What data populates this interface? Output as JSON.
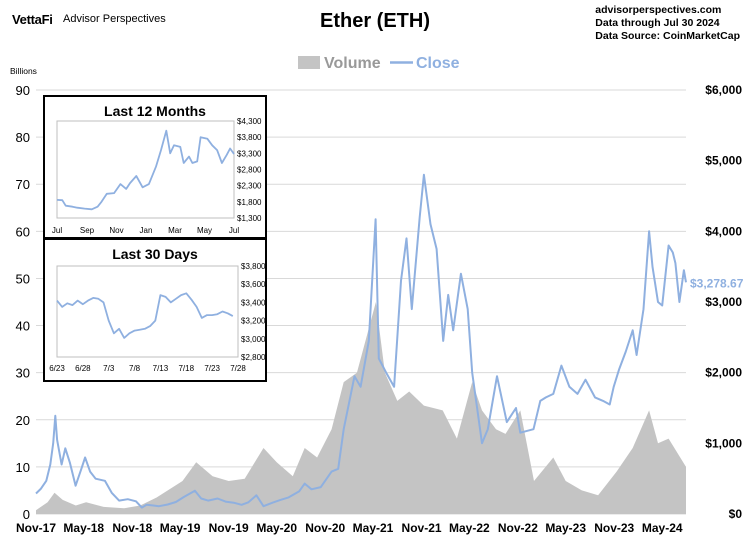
{
  "header": {
    "brand_logo": "VettaFi",
    "brand_name": "Advisor Perspectives",
    "title": "Ether (ETH)",
    "source_lines": [
      "advisorperspectives.com",
      "Data through Jul 30 2024",
      "Data Source: CoinMarketCap"
    ]
  },
  "colors": {
    "close": "#8fb0e0",
    "volume": "#c4c4c4",
    "last_label": "#8fb0e0"
  },
  "chart_data": [
    {
      "type": "area+line",
      "title": "Ether (ETH)",
      "legend": {
        "position": "top-center",
        "entries": [
          "Volume",
          "Close"
        ]
      },
      "left_axis": {
        "label": "Billions",
        "min": 0,
        "max": 90,
        "ticks": [
          0,
          10,
          20,
          30,
          40,
          50,
          60,
          70,
          80,
          90
        ]
      },
      "right_axis": {
        "min": 0,
        "max": 6000,
        "tick_labels": [
          "$0",
          "$1,000",
          "$2,000",
          "$3,000",
          "$4,000",
          "$5,000",
          "$6,000"
        ],
        "tick_values": [
          0,
          1000,
          2000,
          3000,
          4000,
          5000,
          6000
        ]
      },
      "x_tick_labels": [
        "Nov-17",
        "May-18",
        "Nov-18",
        "May-19",
        "Nov-19",
        "May-20",
        "Nov-20",
        "May-21",
        "Nov-21",
        "May-22",
        "Nov-22",
        "May-23",
        "Nov-23",
        "May-24"
      ],
      "x_tick_dates": [
        "2017-11-01",
        "2018-05-01",
        "2018-11-01",
        "2019-05-01",
        "2019-11-01",
        "2020-05-01",
        "2020-11-01",
        "2021-05-01",
        "2021-11-01",
        "2022-05-01",
        "2022-11-01",
        "2023-05-01",
        "2023-11-01",
        "2024-05-01"
      ],
      "x_range": [
        "2017-11-01",
        "2024-07-30"
      ],
      "last_close_label": "$3,278.67",
      "series": [
        {
          "name": "Close",
          "axis": "right",
          "points": [
            [
              "2017-11-01",
              290
            ],
            [
              "2017-11-20",
              360
            ],
            [
              "2017-12-10",
              470
            ],
            [
              "2017-12-25",
              700
            ],
            [
              "2018-01-05",
              1000
            ],
            [
              "2018-01-13",
              1390
            ],
            [
              "2018-01-20",
              1050
            ],
            [
              "2018-02-06",
              700
            ],
            [
              "2018-02-20",
              930
            ],
            [
              "2018-03-10",
              720
            ],
            [
              "2018-03-31",
              400
            ],
            [
              "2018-04-20",
              620
            ],
            [
              "2018-05-06",
              800
            ],
            [
              "2018-05-25",
              600
            ],
            [
              "2018-06-15",
              500
            ],
            [
              "2018-07-20",
              470
            ],
            [
              "2018-08-15",
              300
            ],
            [
              "2018-09-12",
              190
            ],
            [
              "2018-10-15",
              210
            ],
            [
              "2018-11-15",
              180
            ],
            [
              "2018-12-07",
              90
            ],
            [
              "2018-12-25",
              130
            ],
            [
              "2019-01-20",
              120
            ],
            [
              "2019-02-10",
              110
            ],
            [
              "2019-03-15",
              135
            ],
            [
              "2019-04-15",
              170
            ],
            [
              "2019-05-15",
              240
            ],
            [
              "2019-06-26",
              330
            ],
            [
              "2019-07-20",
              220
            ],
            [
              "2019-08-15",
              190
            ],
            [
              "2019-09-20",
              220
            ],
            [
              "2019-10-20",
              175
            ],
            [
              "2019-11-20",
              160
            ],
            [
              "2019-12-20",
              130
            ],
            [
              "2020-01-15",
              165
            ],
            [
              "2020-02-14",
              265
            ],
            [
              "2020-03-12",
              110
            ],
            [
              "2020-04-15",
              160
            ],
            [
              "2020-05-15",
              200
            ],
            [
              "2020-06-15",
              235
            ],
            [
              "2020-07-25",
              320
            ],
            [
              "2020-08-15",
              430
            ],
            [
              "2020-09-10",
              350
            ],
            [
              "2020-10-15",
              380
            ],
            [
              "2020-11-25",
              600
            ],
            [
              "2020-12-20",
              640
            ],
            [
              "2021-01-10",
              1200
            ],
            [
              "2021-02-20",
              1950
            ],
            [
              "2021-03-15",
              1800
            ],
            [
              "2021-04-15",
              2450
            ],
            [
              "2021-05-11",
              4170
            ],
            [
              "2021-05-23",
              2200
            ],
            [
              "2021-06-20",
              2000
            ],
            [
              "2021-07-20",
              1800
            ],
            [
              "2021-08-15",
              3300
            ],
            [
              "2021-09-05",
              3900
            ],
            [
              "2021-09-25",
              2900
            ],
            [
              "2021-10-25",
              4200
            ],
            [
              "2021-11-10",
              4800
            ],
            [
              "2021-12-05",
              4100
            ],
            [
              "2021-12-28",
              3750
            ],
            [
              "2022-01-22",
              2450
            ],
            [
              "2022-02-10",
              3100
            ],
            [
              "2022-03-01",
              2600
            ],
            [
              "2022-03-30",
              3400
            ],
            [
              "2022-04-25",
              2900
            ],
            [
              "2022-05-12",
              2000
            ],
            [
              "2022-06-18",
              1000
            ],
            [
              "2022-07-10",
              1200
            ],
            [
              "2022-08-14",
              1950
            ],
            [
              "2022-09-20",
              1300
            ],
            [
              "2022-10-25",
              1500
            ],
            [
              "2022-11-10",
              1150
            ],
            [
              "2022-12-30",
              1200
            ],
            [
              "2023-01-25",
              1600
            ],
            [
              "2023-02-15",
              1650
            ],
            [
              "2023-03-15",
              1700
            ],
            [
              "2023-04-15",
              2100
            ],
            [
              "2023-05-15",
              1800
            ],
            [
              "2023-06-15",
              1700
            ],
            [
              "2023-07-15",
              1900
            ],
            [
              "2023-08-20",
              1650
            ],
            [
              "2023-09-20",
              1600
            ],
            [
              "2023-10-15",
              1550
            ],
            [
              "2023-10-30",
              1800
            ],
            [
              "2023-11-20",
              2050
            ],
            [
              "2023-12-15",
              2300
            ],
            [
              "2024-01-10",
              2600
            ],
            [
              "2024-01-25",
              2250
            ],
            [
              "2024-02-20",
              2900
            ],
            [
              "2024-03-12",
              4000
            ],
            [
              "2024-03-25",
              3500
            ],
            [
              "2024-04-15",
              3000
            ],
            [
              "2024-05-01",
              2950
            ],
            [
              "2024-05-25",
              3800
            ],
            [
              "2024-06-10",
              3700
            ],
            [
              "2024-06-20",
              3550
            ],
            [
              "2024-07-05",
              3000
            ],
            [
              "2024-07-22",
              3450
            ],
            [
              "2024-07-30",
              3279
            ]
          ]
        },
        {
          "name": "Volume",
          "axis": "left",
          "points": [
            [
              "2017-11-01",
              0.8
            ],
            [
              "2017-12-15",
              2.5
            ],
            [
              "2018-01-10",
              4.5
            ],
            [
              "2018-02-10",
              3
            ],
            [
              "2018-04-01",
              1.8
            ],
            [
              "2018-05-10",
              2.5
            ],
            [
              "2018-07-15",
              1.5
            ],
            [
              "2018-10-01",
              1.2
            ],
            [
              "2018-12-01",
              1.8
            ],
            [
              "2019-02-01",
              3.5
            ],
            [
              "2019-05-10",
              7
            ],
            [
              "2019-07-01",
              11
            ],
            [
              "2019-09-01",
              8
            ],
            [
              "2019-11-01",
              7
            ],
            [
              "2020-01-01",
              7.5
            ],
            [
              "2020-03-12",
              14
            ],
            [
              "2020-05-01",
              11
            ],
            [
              "2020-07-01",
              8
            ],
            [
              "2020-08-15",
              14
            ],
            [
              "2020-10-01",
              12
            ],
            [
              "2020-11-25",
              18
            ],
            [
              "2021-01-10",
              28
            ],
            [
              "2021-03-01",
              30
            ],
            [
              "2021-05-12",
              45
            ],
            [
              "2021-06-15",
              30
            ],
            [
              "2021-08-01",
              24
            ],
            [
              "2021-09-15",
              26
            ],
            [
              "2021-11-10",
              23
            ],
            [
              "2022-01-20",
              22
            ],
            [
              "2022-03-15",
              16
            ],
            [
              "2022-05-12",
              28
            ],
            [
              "2022-06-18",
              22
            ],
            [
              "2022-08-10",
              18
            ],
            [
              "2022-09-15",
              17
            ],
            [
              "2022-11-10",
              22
            ],
            [
              "2023-01-01",
              7
            ],
            [
              "2023-03-15",
              12
            ],
            [
              "2023-05-01",
              7
            ],
            [
              "2023-07-01",
              5
            ],
            [
              "2023-09-01",
              4
            ],
            [
              "2023-11-10",
              9
            ],
            [
              "2024-01-10",
              14
            ],
            [
              "2024-03-12",
              22
            ],
            [
              "2024-04-15",
              15
            ],
            [
              "2024-05-25",
              16
            ],
            [
              "2024-07-30",
              10
            ]
          ]
        }
      ]
    },
    {
      "type": "line",
      "title": "Last 12 Months",
      "x_tick_labels": [
        "Jul",
        "Sep",
        "Nov",
        "Jan",
        "Mar",
        "May",
        "Jul"
      ],
      "x_tick_dates": [
        "2023-07-30",
        "2023-09-30",
        "2023-11-30",
        "2024-01-30",
        "2024-03-30",
        "2024-05-30",
        "2024-07-30"
      ],
      "x_range": [
        "2023-07-30",
        "2024-07-30"
      ],
      "y_tick_labels": [
        "$1,300",
        "$1,800",
        "$2,300",
        "$2,800",
        "$3,300",
        "$3,800",
        "$4,300"
      ],
      "y_tick_values": [
        1300,
        1800,
        2300,
        2800,
        3300,
        3800,
        4300
      ],
      "ylim": [
        1300,
        4300
      ],
      "series": [
        {
          "name": "Close",
          "points": [
            [
              "2023-07-30",
              1860
            ],
            [
              "2023-08-10",
              1850
            ],
            [
              "2023-08-17",
              1680
            ],
            [
              "2023-08-31",
              1650
            ],
            [
              "2023-09-10",
              1620
            ],
            [
              "2023-09-25",
              1590
            ],
            [
              "2023-10-10",
              1570
            ],
            [
              "2023-10-22",
              1650
            ],
            [
              "2023-10-30",
              1800
            ],
            [
              "2023-11-10",
              2050
            ],
            [
              "2023-11-25",
              2070
            ],
            [
              "2023-12-08",
              2350
            ],
            [
              "2023-12-20",
              2200
            ],
            [
              "2023-12-28",
              2380
            ],
            [
              "2024-01-10",
              2600
            ],
            [
              "2024-01-23",
              2250
            ],
            [
              "2024-02-05",
              2350
            ],
            [
              "2024-02-20",
              2900
            ],
            [
              "2024-03-01",
              3400
            ],
            [
              "2024-03-12",
              4000
            ],
            [
              "2024-03-20",
              3300
            ],
            [
              "2024-03-28",
              3550
            ],
            [
              "2024-04-10",
              3500
            ],
            [
              "2024-04-17",
              3000
            ],
            [
              "2024-04-28",
              3200
            ],
            [
              "2024-05-05",
              3000
            ],
            [
              "2024-05-15",
              3050
            ],
            [
              "2024-05-22",
              3800
            ],
            [
              "2024-06-05",
              3750
            ],
            [
              "2024-06-15",
              3550
            ],
            [
              "2024-06-25",
              3400
            ],
            [
              "2024-07-05",
              3000
            ],
            [
              "2024-07-15",
              3250
            ],
            [
              "2024-07-22",
              3450
            ],
            [
              "2024-07-30",
              3279
            ]
          ]
        }
      ]
    },
    {
      "type": "line",
      "title": "Last 30 Days",
      "x_tick_labels": [
        "6/23",
        "6/28",
        "7/3",
        "7/8",
        "7/13",
        "7/18",
        "7/23",
        "7/28"
      ],
      "x_tick_values": [
        0,
        5,
        10,
        15,
        20,
        25,
        30,
        35
      ],
      "y_tick_labels": [
        "$2,800",
        "$3,000",
        "$3,200",
        "$3,400",
        "$3,600",
        "$3,800"
      ],
      "y_tick_values": [
        2800,
        3000,
        3200,
        3400,
        3600,
        3800
      ],
      "ylim": [
        2800,
        3800
      ],
      "series": [
        {
          "name": "Close",
          "points": [
            [
              0,
              3420
            ],
            [
              1,
              3350
            ],
            [
              2,
              3390
            ],
            [
              3,
              3370
            ],
            [
              4,
              3420
            ],
            [
              5,
              3380
            ],
            [
              6,
              3420
            ],
            [
              7,
              3450
            ],
            [
              8,
              3440
            ],
            [
              9,
              3400
            ],
            [
              10,
              3200
            ],
            [
              11,
              3060
            ],
            [
              12,
              3110
            ],
            [
              13,
              3010
            ],
            [
              14,
              3060
            ],
            [
              15,
              3090
            ],
            [
              16,
              3100
            ],
            [
              17,
              3110
            ],
            [
              18,
              3140
            ],
            [
              19,
              3200
            ],
            [
              20,
              3480
            ],
            [
              21,
              3460
            ],
            [
              22,
              3400
            ],
            [
              23,
              3440
            ],
            [
              24,
              3480
            ],
            [
              25,
              3500
            ],
            [
              26,
              3430
            ],
            [
              27,
              3350
            ],
            [
              28,
              3230
            ],
            [
              29,
              3260
            ],
            [
              30,
              3260
            ],
            [
              31,
              3270
            ],
            [
              32,
              3300
            ],
            [
              33,
              3280
            ],
            [
              34,
              3250
            ]
          ]
        }
      ]
    }
  ]
}
